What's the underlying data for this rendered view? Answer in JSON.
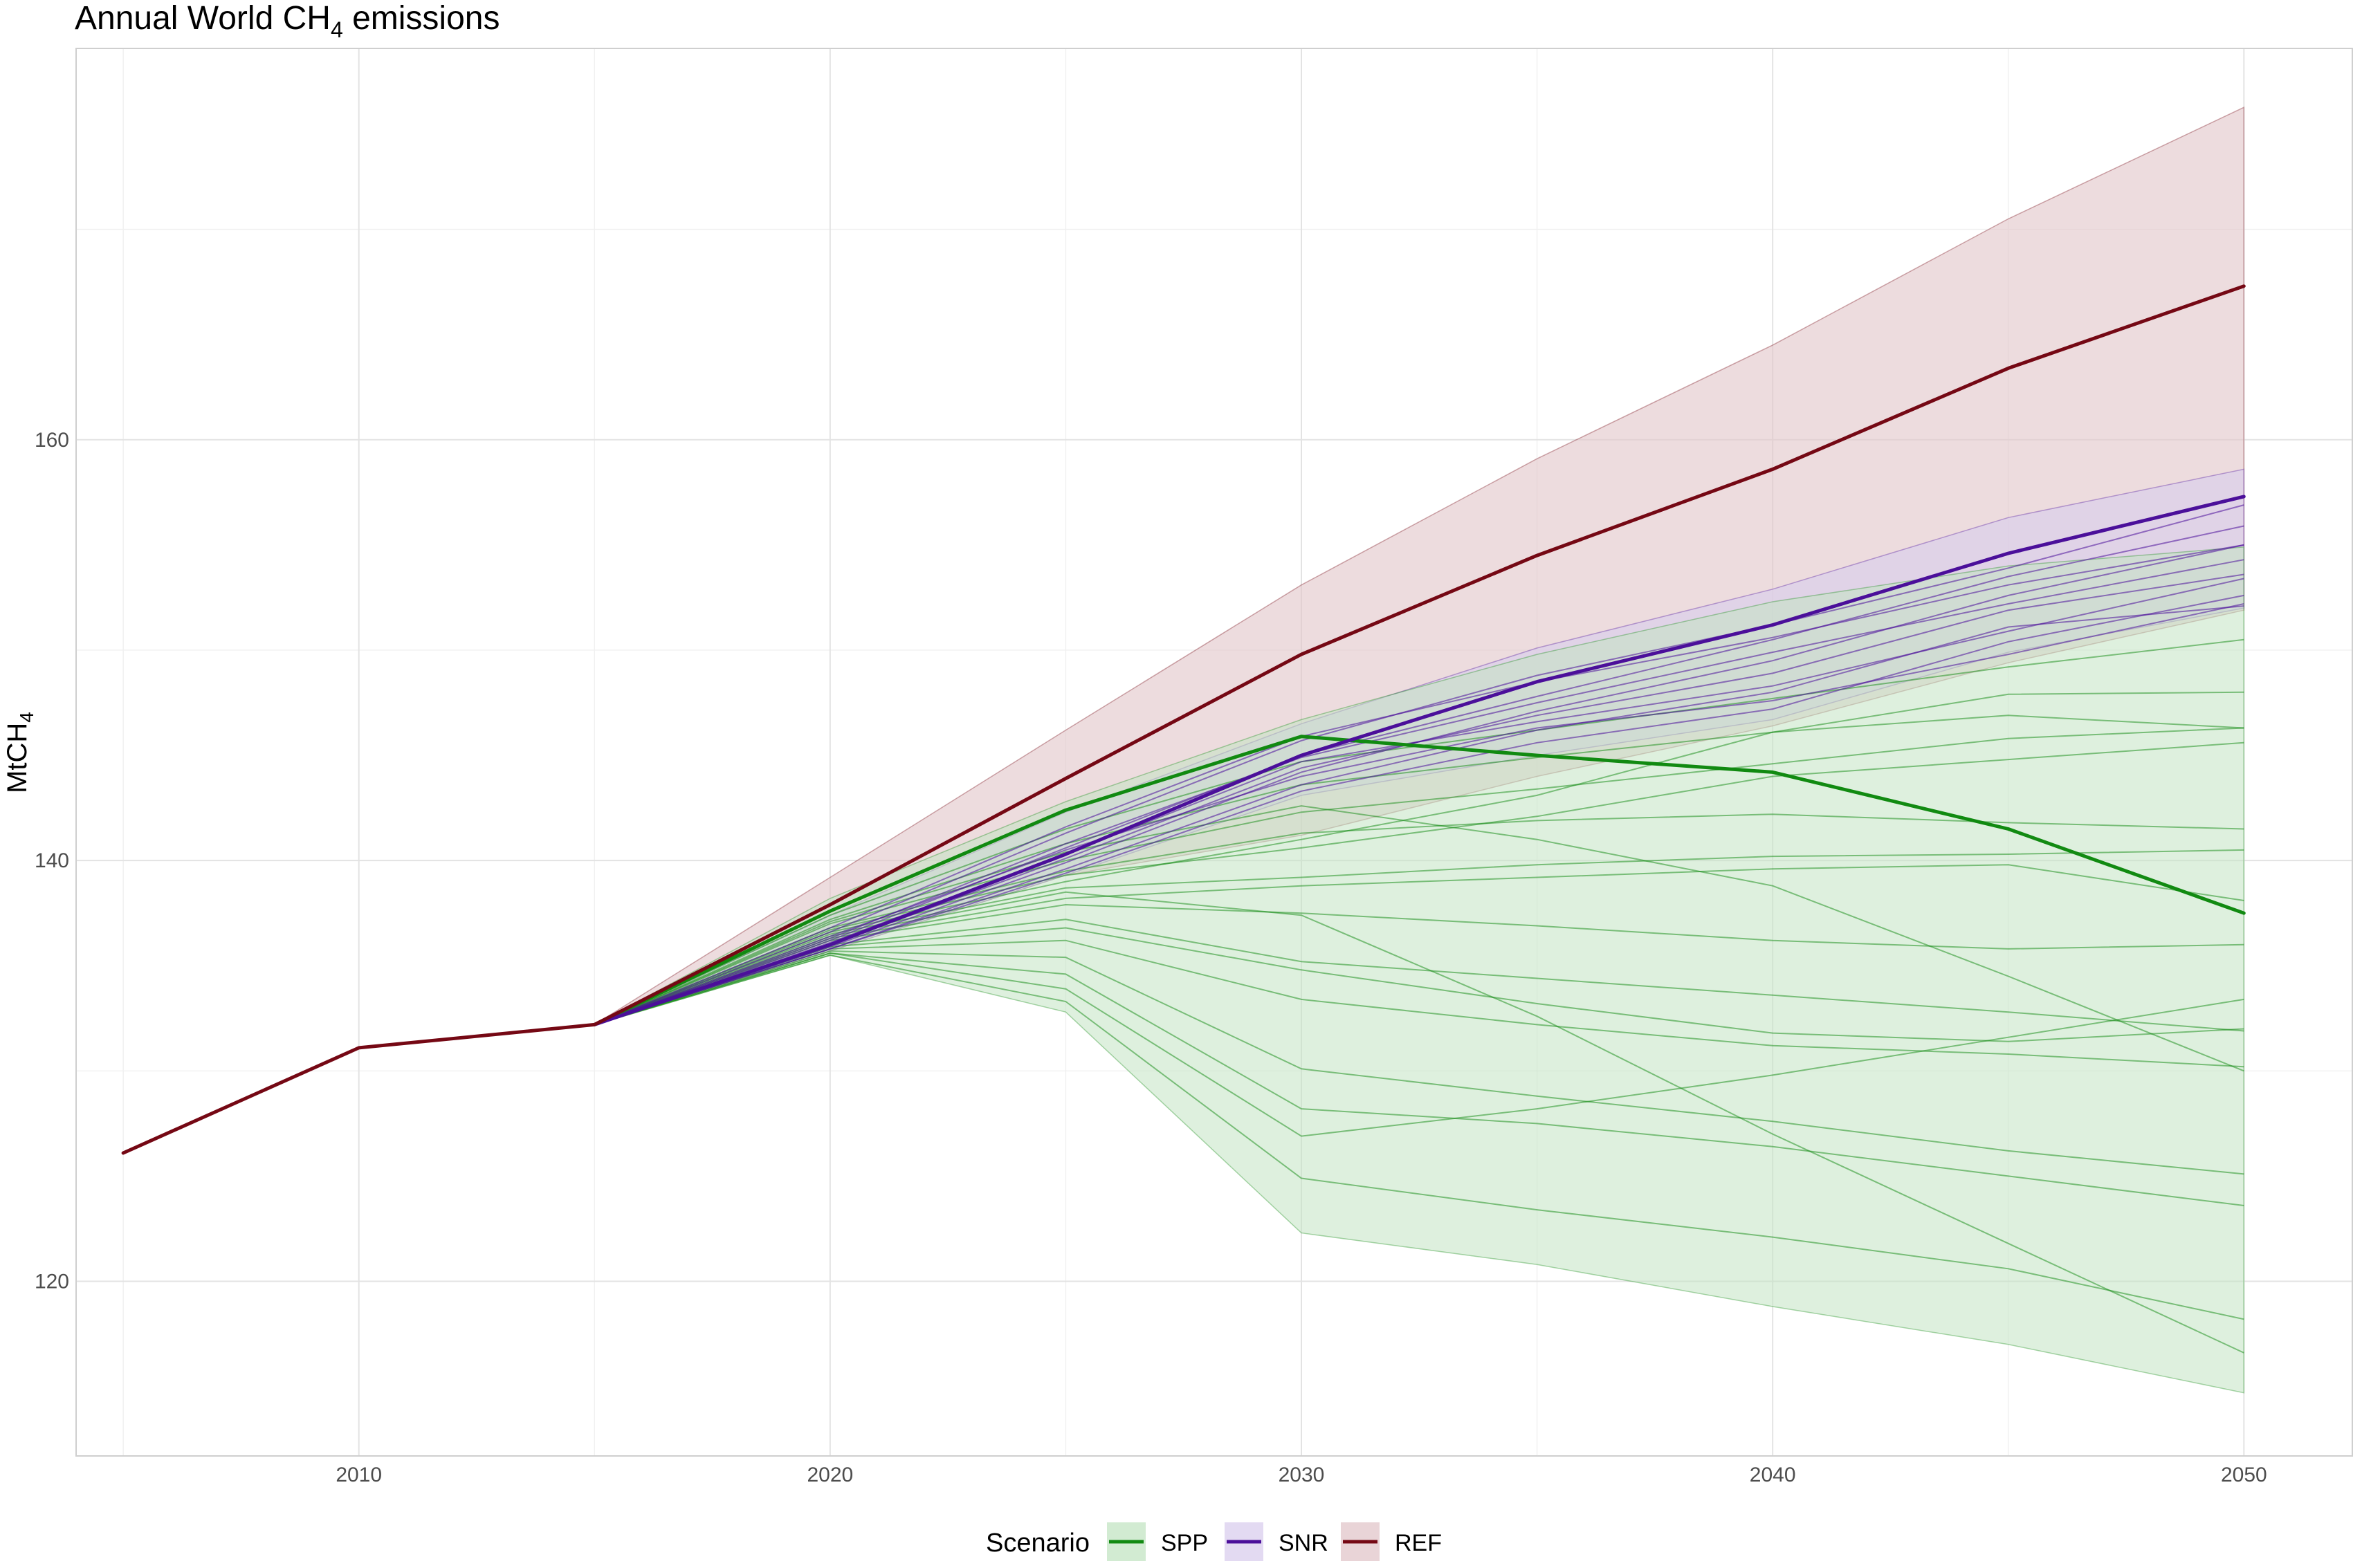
{
  "chart_data": {
    "type": "area",
    "title_main": "Annual World CH",
    "title_sub": "4",
    "title_rest": " emissions",
    "ylabel_main": "MtCH",
    "ylabel_sub": "4",
    "xlabel": "",
    "x": [
      2005,
      2010,
      2015,
      2020,
      2025,
      2030,
      2035,
      2040,
      2045,
      2050
    ],
    "xlim": [
      2004,
      2052.3
    ],
    "ylim": [
      111.7,
      178.6
    ],
    "x_ticks": [
      2010,
      2020,
      2030,
      2040,
      2050
    ],
    "x_minor_ticks": [
      2005,
      2015,
      2025,
      2035,
      2045
    ],
    "y_ticks": [
      120,
      140,
      160
    ],
    "y_minor_ticks": [
      130,
      150,
      170
    ],
    "grid": true,
    "legend_position": "bottom",
    "legend_title": "Scenario",
    "series": [
      {
        "name": "SPP",
        "color": "#118a11",
        "fill": "#c3e4c3",
        "median": [
          null,
          null,
          132.2,
          137.6,
          142.4,
          145.9,
          145.0,
          144.2,
          141.5,
          137.5
        ],
        "lower": [
          null,
          null,
          132.2,
          135.5,
          132.8,
          122.3,
          120.8,
          118.8,
          117.0,
          114.7
        ],
        "upper": [
          null,
          null,
          132.2,
          138.2,
          142.8,
          146.7,
          149.8,
          152.3,
          154.0,
          154.9
        ],
        "runs": [
          [
            null,
            null,
            132.2,
            136.8,
            139.5,
            141.3,
            141.9,
            142.2,
            141.8,
            141.5
          ],
          [
            null,
            null,
            132.2,
            136.5,
            138.7,
            139.2,
            139.8,
            140.2,
            140.3,
            140.5
          ],
          [
            null,
            null,
            132.2,
            136.2,
            137.9,
            137.5,
            136.9,
            136.2,
            135.8,
            136.0
          ],
          [
            null,
            null,
            132.2,
            136.0,
            137.2,
            135.2,
            134.4,
            133.6,
            132.8,
            131.9
          ],
          [
            null,
            null,
            132.2,
            135.8,
            136.2,
            133.4,
            132.2,
            131.2,
            130.8,
            130.2
          ],
          [
            null,
            null,
            132.2,
            135.6,
            134.6,
            128.2,
            127.5,
            126.4,
            125.0,
            123.6
          ],
          [
            null,
            null,
            132.2,
            135.5,
            133.3,
            124.9,
            123.4,
            122.1,
            120.6,
            118.2
          ],
          [
            null,
            null,
            132.2,
            137.2,
            140.8,
            143.6,
            144.9,
            146.1,
            146.9,
            146.3
          ],
          [
            null,
            null,
            132.2,
            137.0,
            140.0,
            142.3,
            143.4,
            144.6,
            145.8,
            146.3
          ],
          [
            null,
            null,
            132.2,
            137.4,
            141.5,
            144.7,
            146.2,
            147.7,
            149.2,
            150.5
          ],
          [
            null,
            null,
            132.2,
            136.6,
            139.0,
            141.0,
            143.1,
            146.1,
            147.9,
            148.0
          ],
          [
            null,
            null,
            132.2,
            136.3,
            138.2,
            138.8,
            139.2,
            139.6,
            139.8,
            138.1
          ],
          [
            null,
            null,
            132.2,
            135.9,
            136.8,
            134.8,
            133.2,
            131.8,
            131.4,
            132.0
          ],
          [
            null,
            null,
            132.2,
            135.7,
            135.4,
            130.1,
            128.8,
            127.6,
            126.2,
            125.1
          ],
          [
            null,
            null,
            132.2,
            137.1,
            140.4,
            142.6,
            141.0,
            138.8,
            134.5,
            130.0
          ],
          [
            null,
            null,
            132.2,
            136.4,
            138.5,
            137.4,
            132.6,
            127.0,
            121.8,
            116.6
          ],
          [
            null,
            null,
            132.2,
            136.7,
            139.3,
            140.6,
            142.1,
            144.0,
            144.8,
            145.6
          ],
          [
            null,
            null,
            132.2,
            135.6,
            133.9,
            126.9,
            128.2,
            129.8,
            131.6,
            133.4
          ]
        ]
      },
      {
        "name": "SNR",
        "color": "#4b0f9a",
        "fill": "#d9cdee",
        "median": [
          null,
          null,
          132.2,
          136.0,
          140.3,
          145.0,
          148.5,
          151.2,
          154.6,
          157.3
        ],
        "lower": [
          null,
          null,
          132.2,
          135.7,
          139.3,
          143.1,
          145.0,
          146.7,
          149.9,
          152.0
        ],
        "upper": [
          null,
          null,
          132.2,
          137.4,
          142.3,
          146.5,
          150.1,
          152.9,
          156.3,
          158.6
        ],
        "runs": [
          [
            null,
            null,
            132.2,
            135.9,
            139.9,
            144.2,
            147.1,
            149.5,
            152.6,
            155.0
          ],
          [
            null,
            null,
            132.2,
            136.2,
            140.6,
            145.0,
            147.8,
            150.5,
            153.5,
            155.9
          ],
          [
            null,
            null,
            132.2,
            136.6,
            141.3,
            145.7,
            148.8,
            151.2,
            153.9,
            156.9
          ],
          [
            null,
            null,
            132.2,
            135.8,
            139.6,
            143.6,
            146.2,
            148.0,
            151.1,
            152.1
          ],
          [
            null,
            null,
            132.2,
            136.0,
            140.1,
            144.4,
            146.9,
            148.9,
            151.9,
            153.6
          ],
          [
            null,
            null,
            132.2,
            136.3,
            140.8,
            144.9,
            147.5,
            149.9,
            152.2,
            154.3
          ],
          [
            null,
            null,
            132.2,
            136.8,
            141.6,
            145.9,
            148.5,
            150.6,
            153.1,
            155.0
          ],
          [
            null,
            null,
            132.2,
            135.8,
            139.4,
            143.3,
            145.6,
            147.2,
            150.4,
            152.6
          ],
          [
            null,
            null,
            132.2,
            136.1,
            140.3,
            144.7,
            146.6,
            148.3,
            150.9,
            153.4
          ],
          [
            null,
            null,
            132.2,
            136.4,
            140.5,
            144.0,
            146.3,
            147.6,
            149.8,
            152.2
          ]
        ]
      },
      {
        "name": "REF",
        "color": "#750814",
        "fill": "#e2c6ca",
        "median": [
          126.1,
          131.1,
          132.2,
          137.9,
          143.9,
          149.8,
          154.5,
          158.6,
          163.4,
          167.3
        ],
        "lower": [
          126.1,
          131.1,
          132.2,
          135.7,
          139.3,
          141.2,
          144.0,
          146.4,
          149.4,
          151.9
        ],
        "upper": [
          126.1,
          131.1,
          132.2,
          139.2,
          146.2,
          153.1,
          159.1,
          164.5,
          170.5,
          175.8
        ],
        "runs": []
      }
    ]
  }
}
